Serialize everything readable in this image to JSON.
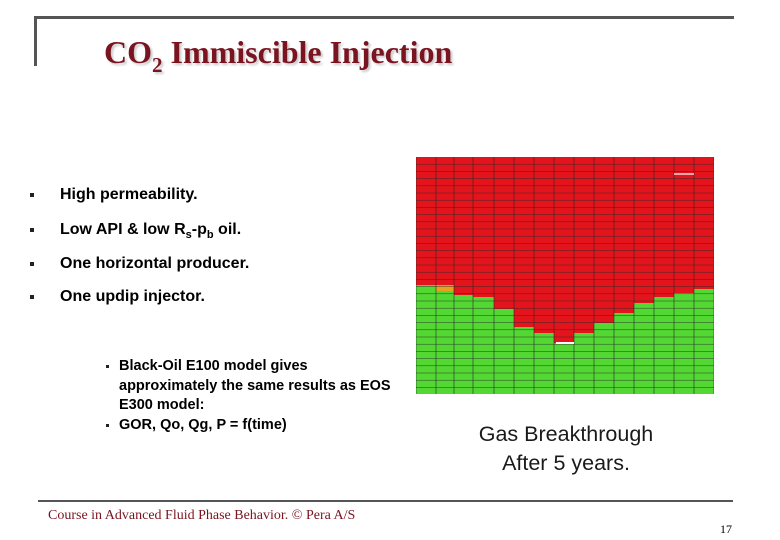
{
  "slide": {
    "title_main": "CO",
    "title_sub": "2",
    "title_rest": " Immiscible Injection",
    "bullets": [
      {
        "pre": "High permeability.",
        "s1": "",
        "mid": "",
        "s2": "",
        "post": ""
      },
      {
        "pre": "Low API & low R",
        "s1": "s",
        "mid": "-p",
        "s2": "b",
        "post": " oil."
      },
      {
        "pre": "One horizontal producer.",
        "s1": "",
        "mid": "",
        "s2": "",
        "post": ""
      },
      {
        "pre": "One updip injector.",
        "s1": "",
        "mid": "",
        "s2": "",
        "post": ""
      }
    ],
    "sub_bullets": [
      "Black-Oil E100 model gives approximately the same results as EOS E300 model:",
      "GOR, Qo, Qg, P = f(time)"
    ],
    "caption_line1": "Gas Breakthrough",
    "caption_line2": "After 5 years.",
    "footer": "Course in Advanced Fluid Phase Behavior. © Pera A/S",
    "page_number": "17"
  },
  "colors": {
    "title": "#7a1420",
    "gas": "#e3141b",
    "oil": "#53d733",
    "grid_line": "#2a2a2a"
  }
}
